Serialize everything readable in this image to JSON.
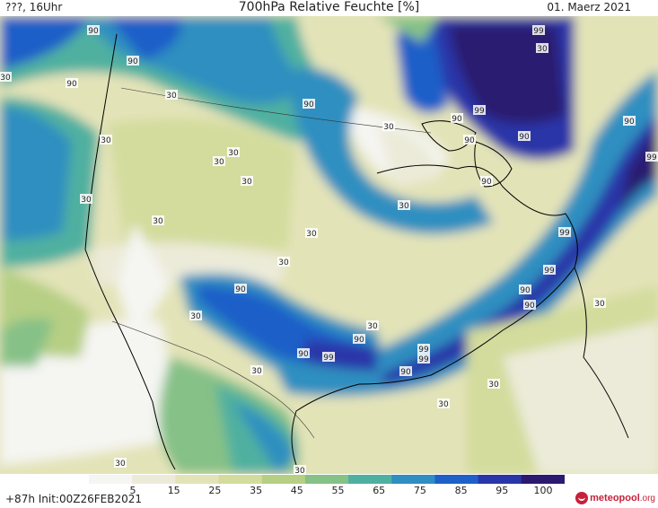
{
  "header": {
    "left": "???, 16Uhr",
    "title": "700hPa Relative Feuchte [%]",
    "date": "01. Maerz 2021"
  },
  "footer": {
    "run_info": "+87h Init:00Z26FEB2021",
    "brand_main": "meteopool",
    "brand_suffix": ".org"
  },
  "legend": {
    "ticks": [
      "5",
      "15",
      "25",
      "35",
      "45",
      "55",
      "65",
      "75",
      "85",
      "95",
      "100"
    ],
    "colors": [
      "#f5f5f2",
      "#ecebd9",
      "#e3e3b8",
      "#d3dc9c",
      "#b6cf84",
      "#86c187",
      "#4fb0a0",
      "#2f8fc0",
      "#1f5fc8",
      "#2a35a8",
      "#2b1a70"
    ]
  },
  "contour_labels": [
    "90",
    "30",
    "99"
  ]
}
